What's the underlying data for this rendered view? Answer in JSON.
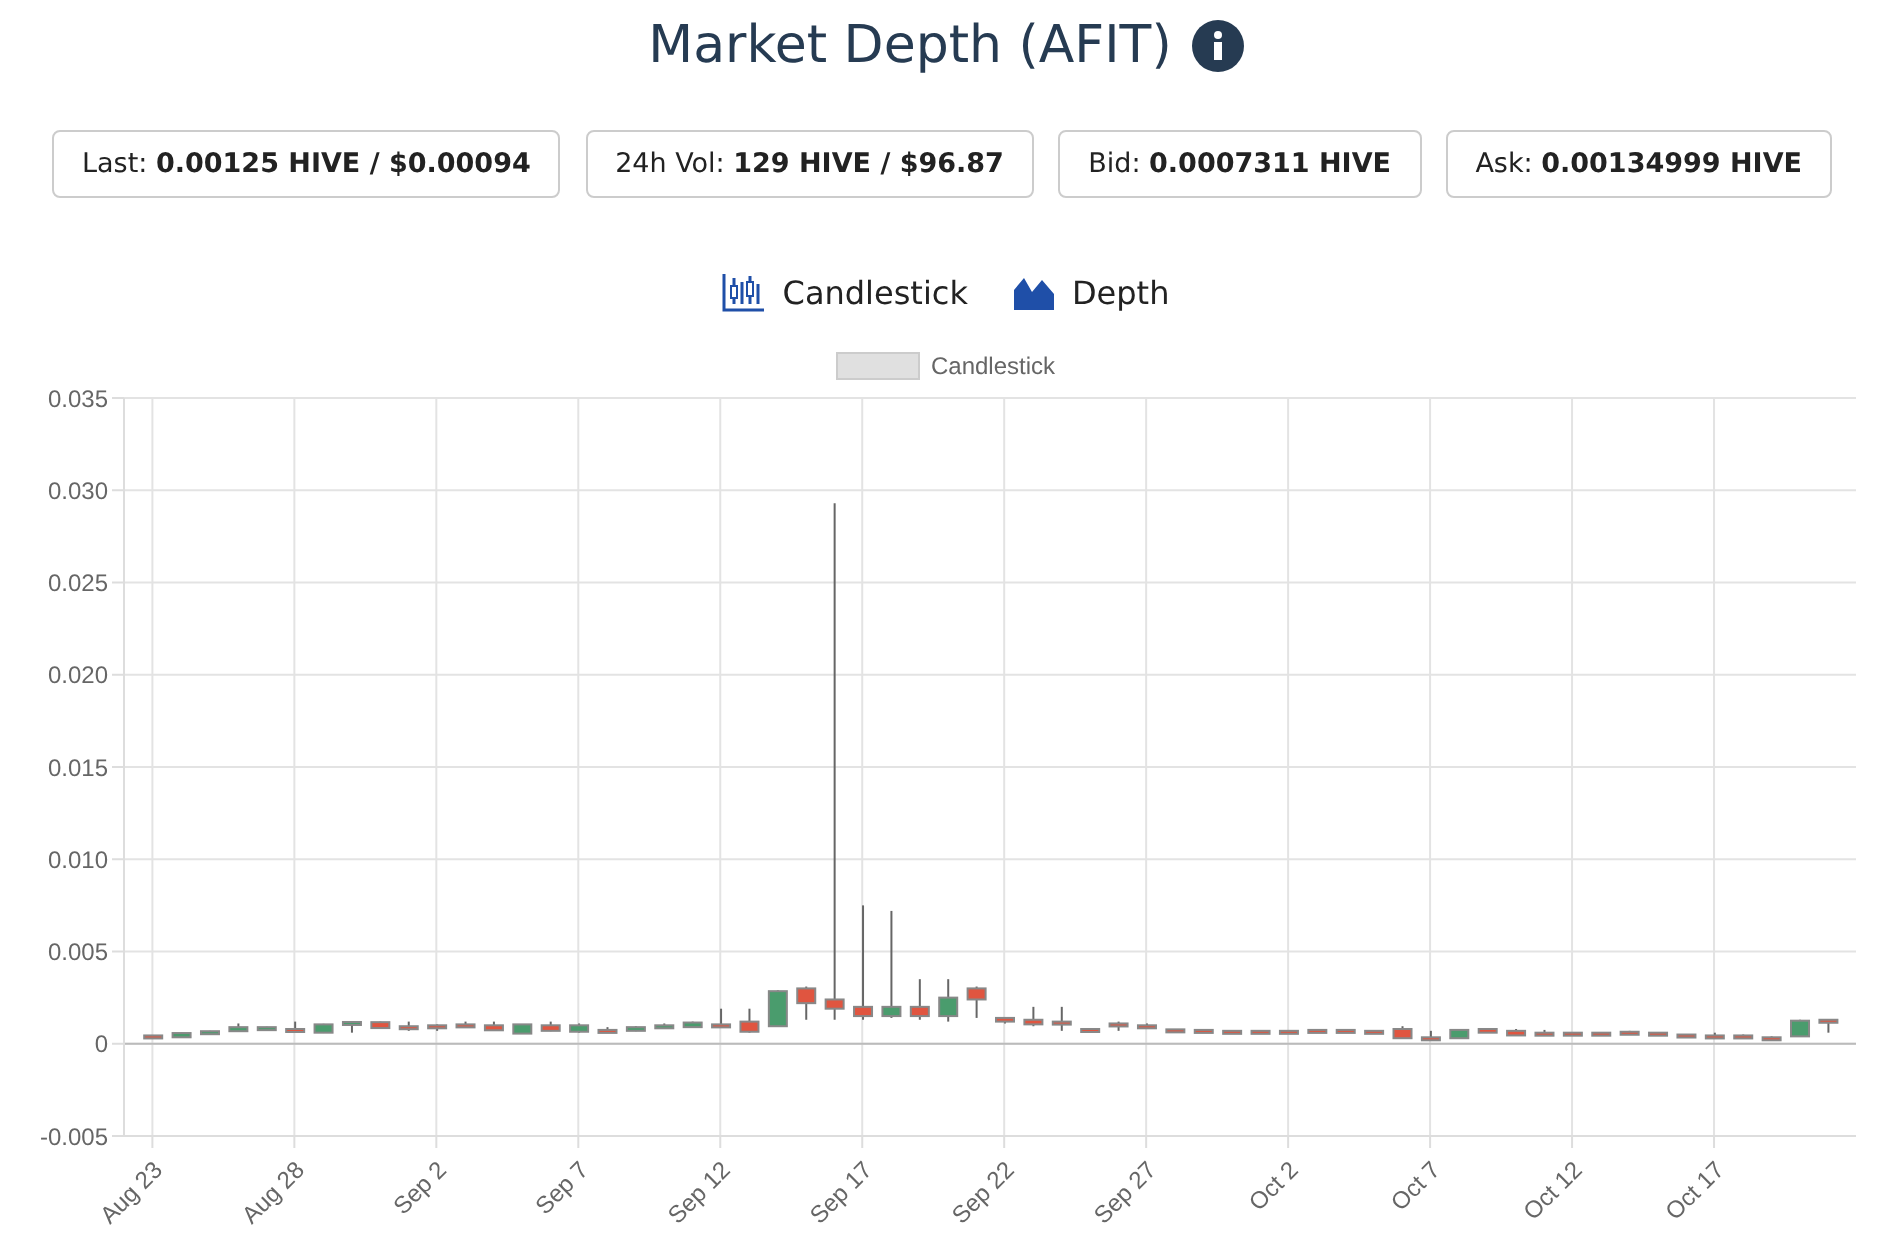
{
  "chart_data": {
    "type": "candlestick",
    "title": "Market Depth (AFIT)",
    "annotations": [
      "Last: 0.00125 HIVE / $0.00094",
      "24h Vol: 129 HIVE / $96.87",
      "Bid: 0.0007311 HIVE",
      "Ask: 0.00134999 HIVE",
      "Candlestick",
      "Depth"
    ],
    "x": [
      "--08-23",
      "--08-24",
      "--08-25",
      "--08-26",
      "--08-27",
      "--08-28",
      "--08-29",
      "--08-30",
      "--08-31",
      "--09-01",
      "--09-02",
      "--09-03",
      "--09-04",
      "--09-05",
      "--09-06",
      "--09-07",
      "--09-08",
      "--09-09",
      "--09-10",
      "--09-11",
      "--09-12",
      "--09-13",
      "--09-14",
      "--09-15",
      "--09-16",
      "--09-17",
      "--09-18",
      "--09-19",
      "--09-20",
      "--09-21",
      "--09-22",
      "--09-23",
      "--09-24",
      "--09-25",
      "--09-26",
      "--09-27",
      "--09-28",
      "--09-29",
      "--09-30",
      "--10-01",
      "--10-02",
      "--10-03",
      "--10-04",
      "--10-05",
      "--10-06",
      "--10-07",
      "--10-08",
      "--10-09",
      "--10-10",
      "--10-11",
      "--10-12",
      "--10-13",
      "--10-14",
      "--10-15",
      "--10-16",
      "--10-17",
      "--10-18",
      "--10-19",
      "--10-20",
      "--10-21"
    ],
    "series": [
      {
        "name": "Candlestick",
        "ohlc": [
          [
            0.00045,
            0.00046,
            0.00042,
            0.00043
          ],
          [
            0.00035,
            0.0006,
            0.00033,
            0.00058
          ],
          [
            0.00055,
            0.0007,
            0.0005,
            0.00068
          ],
          [
            0.00068,
            0.0011,
            0.00065,
            0.0009
          ],
          [
            0.0008,
            0.00092,
            0.00078,
            0.0009
          ],
          [
            0.0008,
            0.0012,
            0.00066,
            0.0007
          ],
          [
            0.0006,
            0.00108,
            0.00058,
            0.00105
          ],
          [
            0.0011,
            0.0012,
            0.0006,
            0.00118
          ],
          [
            0.00117,
            0.0012,
            0.00083,
            0.00085
          ],
          [
            0.00095,
            0.0012,
            0.0007,
            0.0009
          ],
          [
            0.001,
            0.00105,
            0.0007,
            0.00095
          ],
          [
            0.00105,
            0.0012,
            0.0009,
            0.00095
          ],
          [
            0.001,
            0.0012,
            0.0007,
            0.00073
          ],
          [
            0.00055,
            0.00107,
            0.00053,
            0.00105
          ],
          [
            0.001,
            0.0012,
            0.00068,
            0.0007
          ],
          [
            0.00065,
            0.0011,
            0.0006,
            0.001
          ],
          [
            0.00075,
            0.0009,
            0.00065,
            0.00068
          ],
          [
            0.0007,
            0.00095,
            0.00068,
            0.0009
          ],
          [
            0.00088,
            0.0011,
            0.00085,
            0.001
          ],
          [
            0.0009,
            0.0012,
            0.00088,
            0.00115
          ],
          [
            0.00105,
            0.0019,
            0.0009,
            0.00095
          ],
          [
            0.0012,
            0.0019,
            0.0006,
            0.00065
          ],
          [
            0.00095,
            0.0029,
            0.00093,
            0.00285
          ],
          [
            0.003,
            0.0031,
            0.0013,
            0.0022
          ],
          [
            0.0024,
            0.0293,
            0.0013,
            0.0019
          ],
          [
            0.002,
            0.0075,
            0.0013,
            0.0015
          ],
          [
            0.0015,
            0.0072,
            0.0014,
            0.002
          ],
          [
            0.002,
            0.0035,
            0.0013,
            0.0015
          ],
          [
            0.0015,
            0.0035,
            0.0012,
            0.0025
          ],
          [
            0.003,
            0.0031,
            0.0014,
            0.0024
          ],
          [
            0.0014,
            0.0014,
            0.0011,
            0.0012
          ],
          [
            0.0013,
            0.002,
            0.00095,
            0.00105
          ],
          [
            0.0012,
            0.002,
            0.0007,
            0.00105
          ],
          [
            0.0008,
            0.0008,
            0.0007,
            0.0007
          ],
          [
            0.0011,
            0.0012,
            0.0007,
            0.001
          ],
          [
            0.001,
            0.0011,
            0.0008,
            0.0009
          ],
          [
            0.00078,
            0.0008,
            0.0007,
            0.0007
          ],
          [
            0.00075,
            0.00076,
            0.0007,
            0.0007
          ],
          [
            0.0007,
            0.00072,
            0.0006,
            0.0006
          ],
          [
            0.0007,
            0.00072,
            0.0006,
            0.0006
          ],
          [
            0.0007,
            0.00072,
            0.00066,
            0.00068
          ],
          [
            0.00075,
            0.00076,
            0.00072,
            0.00074
          ],
          [
            0.00075,
            0.00076,
            0.00072,
            0.00074
          ],
          [
            0.0007,
            0.00072,
            0.0006,
            0.0006
          ],
          [
            0.0008,
            0.00095,
            0.0003,
            0.0003
          ],
          [
            0.00035,
            0.0007,
            0.00025,
            0.00025
          ],
          [
            0.0003,
            0.0008,
            0.0003,
            0.00075
          ],
          [
            0.0008,
            0.00085,
            0.0006,
            0.0006
          ],
          [
            0.0007,
            0.0008,
            0.00045,
            0.00045
          ],
          [
            0.0006,
            0.00075,
            0.0005,
            0.0005
          ],
          [
            0.0006,
            0.00062,
            0.0005,
            0.0005
          ],
          [
            0.0006,
            0.00062,
            0.0005,
            0.0005
          ],
          [
            0.00065,
            0.0007,
            0.00055,
            0.0006
          ],
          [
            0.0006,
            0.00062,
            0.00045,
            0.00045
          ],
          [
            0.0005,
            0.00052,
            0.00045,
            0.00045
          ],
          [
            0.00045,
            0.0006,
            0.0004,
            0.0004
          ],
          [
            0.00045,
            0.0005,
            0.0003,
            0.0003
          ],
          [
            0.00035,
            0.0004,
            0.0003,
            0.0003
          ],
          [
            0.0004,
            0.0013,
            0.0004,
            0.00125
          ],
          [
            0.0013,
            0.0013,
            0.0006,
            0.00125
          ]
        ]
      }
    ],
    "colors": [
      "#4a9c6d",
      "#e05540"
    ],
    "xlim": [
      "--08-22",
      "--10-22"
    ],
    "xticks": [
      {
        "value": "--08-23",
        "label": "Aug 23"
      },
      {
        "value": "--08-28",
        "label": "Aug 28"
      },
      {
        "value": "--09-02",
        "label": "Sep 2"
      },
      {
        "value": "--09-07",
        "label": "Sep 7"
      },
      {
        "value": "--09-12",
        "label": "Sep 12"
      },
      {
        "value": "--09-17",
        "label": "Sep 17"
      },
      {
        "value": "--09-22",
        "label": "Sep 22"
      },
      {
        "value": "--09-27",
        "label": "Sep 27"
      },
      {
        "value": "--10-02",
        "label": "Oct 2"
      },
      {
        "value": "--10-07",
        "label": "Oct 7"
      },
      {
        "value": "--10-12",
        "label": "Oct 12"
      },
      {
        "value": "--10-17",
        "label": "Oct 17"
      }
    ],
    "ylim": [
      -0.005,
      0.035
    ],
    "yticks": [
      {
        "value": -0.005,
        "label": "-0.005"
      },
      0,
      {
        "value": 0.005,
        "label": "0.005"
      },
      {
        "value": 0.01,
        "label": "0.010"
      },
      {
        "value": 0.015,
        "label": "0.015"
      },
      {
        "value": 0.02,
        "label": "0.020"
      },
      {
        "value": 0.025,
        "label": "0.025"
      },
      {
        "value": 0.03,
        "label": "0.030"
      },
      {
        "value": 0.035,
        "label": "0.035"
      }
    ],
    "grid": true,
    "legend": "top"
  }
}
